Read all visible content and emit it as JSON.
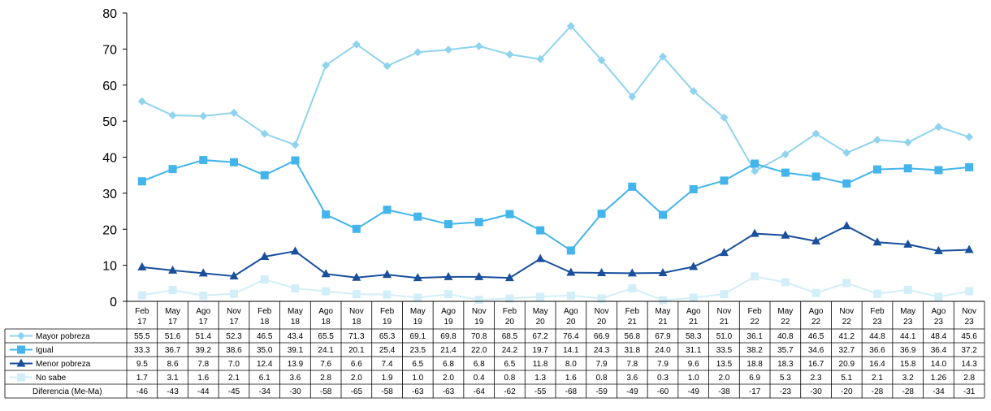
{
  "chart_data": {
    "type": "line",
    "ylim": [
      0,
      80
    ],
    "yticks": [
      "0",
      "10",
      "20",
      "30",
      "40",
      "50",
      "60",
      "70",
      "80"
    ],
    "categories": [
      [
        "Feb",
        "17"
      ],
      [
        "May",
        "17"
      ],
      [
        "Ago",
        "17"
      ],
      [
        "Nov",
        "17"
      ],
      [
        "Feb",
        "18"
      ],
      [
        "May",
        "18"
      ],
      [
        "Ago",
        "18"
      ],
      [
        "Nov",
        "18"
      ],
      [
        "Feb",
        "19"
      ],
      [
        "May",
        "19"
      ],
      [
        "Ago",
        "19"
      ],
      [
        "Nov",
        "19"
      ],
      [
        "Feb",
        "20"
      ],
      [
        "May",
        "20"
      ],
      [
        "Ago",
        "20"
      ],
      [
        "Nov",
        "20"
      ],
      [
        "Feb",
        "21"
      ],
      [
        "May",
        "21"
      ],
      [
        "Ago",
        "21"
      ],
      [
        "Nov",
        "21"
      ],
      [
        "Feb",
        "22"
      ],
      [
        "May",
        "22"
      ],
      [
        "Ago",
        "22"
      ],
      [
        "Nov",
        "22"
      ],
      [
        "Feb",
        "23"
      ],
      [
        "May",
        "23"
      ],
      [
        "Ago",
        "23"
      ],
      [
        "Nov",
        "23"
      ]
    ],
    "series": [
      {
        "name": "Mayor pobreza",
        "color": "#8fd3ee",
        "marker": "diamond",
        "values": [
          55.5,
          51.6,
          51.4,
          52.3,
          46.5,
          43.4,
          65.5,
          71.3,
          65.3,
          69.1,
          69.8,
          70.8,
          68.5,
          67.2,
          76.4,
          66.9,
          56.8,
          67.9,
          58.3,
          51.0,
          36.1,
          40.8,
          46.5,
          41.2,
          44.8,
          44.1,
          48.4,
          45.6
        ],
        "labels": [
          "55.5",
          "51.6",
          "51.4",
          "52.3",
          "46.5",
          "43.4",
          "65.5",
          "71.3",
          "65.3",
          "69.1",
          "69.8",
          "70.8",
          "68.5",
          "67.2",
          "76.4",
          "66.9",
          "56.8",
          "67.9",
          "58.3",
          "51.0",
          "36.1",
          "40.8",
          "46.5",
          "41.2",
          "44.8",
          "44.1",
          "48.4",
          "45.6"
        ]
      },
      {
        "name": "Igual",
        "color": "#43b4ec",
        "marker": "square",
        "values": [
          33.3,
          36.7,
          39.2,
          38.6,
          35.0,
          39.1,
          24.1,
          20.1,
          25.4,
          23.5,
          21.4,
          22.0,
          24.2,
          19.7,
          14.1,
          24.3,
          31.8,
          24.0,
          31.1,
          33.5,
          38.2,
          35.7,
          34.6,
          32.7,
          36.6,
          36.9,
          36.4,
          37.2
        ],
        "labels": [
          "33.3",
          "36.7",
          "39.2",
          "38.6",
          "35.0",
          "39.1",
          "24.1",
          "20.1",
          "25.4",
          "23.5",
          "21.4",
          "22.0",
          "24.2",
          "19.7",
          "14.1",
          "24.3",
          "31.8",
          "24.0",
          "31.1",
          "33.5",
          "38.2",
          "35.7",
          "34.6",
          "32.7",
          "36.6",
          "36.9",
          "36.4",
          "37.2"
        ]
      },
      {
        "name": "Menor pobreza",
        "color": "#1a4f9c",
        "marker": "triangle",
        "values": [
          9.5,
          8.6,
          7.8,
          7.0,
          12.4,
          13.9,
          7.6,
          6.6,
          7.4,
          6.5,
          6.8,
          6.8,
          6.5,
          11.8,
          8.0,
          7.9,
          7.8,
          7.9,
          9.6,
          13.5,
          18.8,
          18.3,
          16.7,
          20.9,
          16.4,
          15.8,
          14.0,
          14.3
        ],
        "labels": [
          "9.5",
          "8.6",
          "7.8",
          "7.0",
          "12.4",
          "13.9",
          "7.6",
          "6.6",
          "7.4",
          "6.5",
          "6.8",
          "6.8",
          "6.5",
          "11.8",
          "8.0",
          "7.9",
          "7.8",
          "7.9",
          "9.6",
          "13.5",
          "18.8",
          "18.3",
          "16.7",
          "20.9",
          "16.4",
          "15.8",
          "14.0",
          "14.3"
        ]
      },
      {
        "name": "No sabe",
        "color": "#d2eef8",
        "marker": "square",
        "values": [
          1.7,
          3.1,
          1.6,
          2.1,
          6.1,
          3.6,
          2.8,
          2.0,
          1.9,
          1.0,
          2.0,
          0.4,
          0.8,
          1.3,
          1.6,
          0.8,
          3.6,
          0.3,
          1.0,
          2.0,
          6.9,
          5.3,
          2.3,
          5.1,
          2.1,
          3.2,
          1.26,
          2.8
        ],
        "labels": [
          "1.7",
          "3.1",
          "1.6",
          "2.1",
          "6.1",
          "3.6",
          "2.8",
          "2.0",
          "1.9",
          "1.0",
          "2.0",
          "0.4",
          "0.8",
          "1.3",
          "1.6",
          "0.8",
          "3.6",
          "0.3",
          "1.0",
          "2.0",
          "6.9",
          "5.3",
          "2.3",
          "5.1",
          "2.1",
          "3.2",
          "1.26",
          "2.8"
        ]
      }
    ],
    "extra_row": {
      "name": "Diferencia (Me-Ma)",
      "labels": [
        "-46",
        "-43",
        "-44",
        "-45",
        "-34",
        "-30",
        "-58",
        "-65",
        "-58",
        "-63",
        "-63",
        "-64",
        "-62",
        "-55",
        "-68",
        "-59",
        "-49",
        "-60",
        "-49",
        "-38",
        "-17",
        "-23",
        "-30",
        "-20",
        "-28",
        "-28",
        "-34",
        "-31"
      ]
    },
    "grid": false,
    "legend": "table-rows-left"
  }
}
